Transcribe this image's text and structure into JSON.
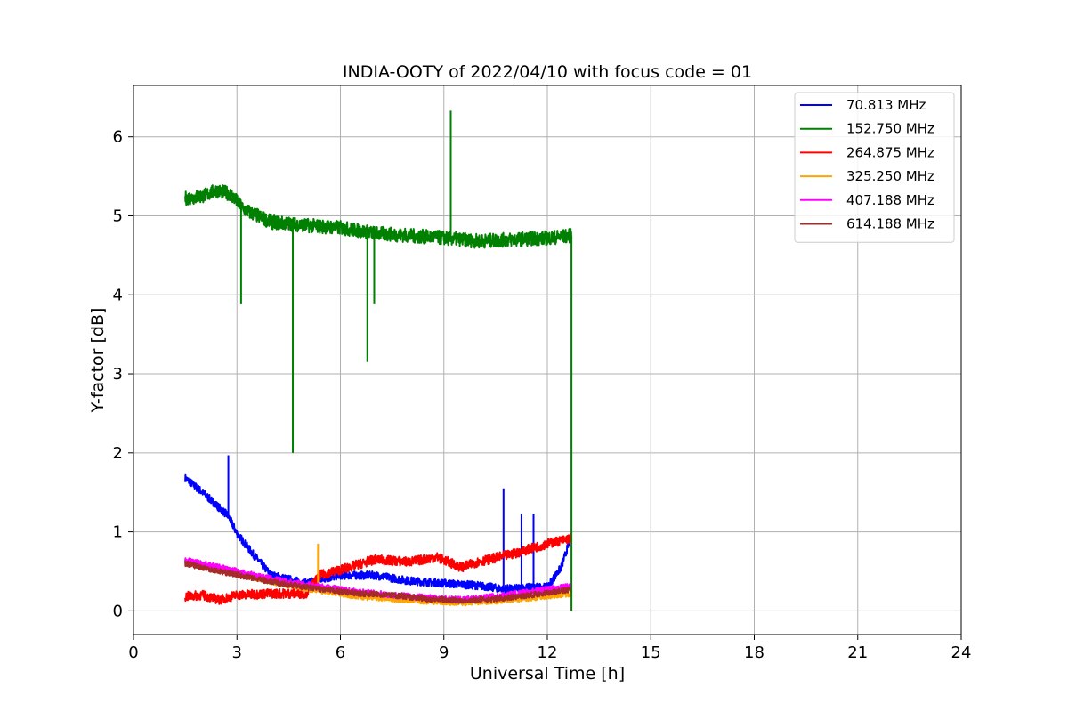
{
  "chart_data": {
    "type": "line",
    "title": "INDIA-OOTY of 2022/04/10 with focus code = 01",
    "xlabel": "Universal Time [h]",
    "ylabel": "Y-factor [dB]",
    "xlim": [
      0,
      24
    ],
    "ylim": [
      -0.3,
      6.65
    ],
    "xticks": [
      0,
      3,
      6,
      9,
      12,
      15,
      18,
      21,
      24
    ],
    "xtick_labels": [
      "0",
      "3",
      "6",
      "9",
      "12",
      "15",
      "18",
      "21",
      "24"
    ],
    "yticks": [
      0,
      1,
      2,
      3,
      4,
      5,
      6
    ],
    "ytick_labels": [
      "0",
      "1",
      "2",
      "3",
      "4",
      "5",
      "6"
    ],
    "grid": true,
    "legend_position": "top-right",
    "series": [
      {
        "name": " 70.813 MHz",
        "color": "#0000ff",
        "x": [
          1.5,
          2.0,
          2.5,
          2.75,
          3.0,
          3.5,
          4.0,
          5.0,
          6.0,
          7.0,
          8.0,
          9.0,
          10.0,
          10.7,
          11.0,
          11.5,
          12.0,
          12.4,
          12.7
        ],
        "y": [
          1.68,
          1.5,
          1.3,
          1.2,
          0.98,
          0.7,
          0.45,
          0.35,
          0.45,
          0.45,
          0.38,
          0.35,
          0.32,
          0.28,
          0.28,
          0.3,
          0.3,
          0.55,
          0.95
        ],
        "spikes": [
          {
            "x": 2.75,
            "y": 1.97
          },
          {
            "x": 10.73,
            "y": 1.55
          },
          {
            "x": 11.25,
            "y": 1.23
          },
          {
            "x": 11.6,
            "y": 1.23
          }
        ]
      },
      {
        "name": "152.750 MHz",
        "color": "#008000",
        "x": [
          1.5,
          2.0,
          2.4,
          2.8,
          3.2,
          4.0,
          5.0,
          6.0,
          7.0,
          8.0,
          9.0,
          10.0,
          11.0,
          12.0,
          12.7
        ],
        "y": [
          5.22,
          5.25,
          5.32,
          5.28,
          5.08,
          4.92,
          4.88,
          4.85,
          4.78,
          4.75,
          4.72,
          4.68,
          4.7,
          4.72,
          4.75
        ],
        "spikes": [
          {
            "x": 3.12,
            "y": 3.88
          },
          {
            "x": 4.62,
            "y": 2.0
          },
          {
            "x": 6.78,
            "y": 3.15
          },
          {
            "x": 6.98,
            "y": 3.88
          },
          {
            "x": 9.2,
            "y": 6.33
          }
        ]
      },
      {
        "name": "264.875 MHz",
        "color": "#ff0000",
        "x": [
          1.5,
          2.0,
          2.5,
          3.0,
          4.0,
          5.0,
          5.4,
          6.0,
          7.0,
          8.0,
          8.8,
          9.5,
          10.0,
          11.0,
          12.0,
          12.7
        ],
        "y": [
          0.18,
          0.2,
          0.14,
          0.2,
          0.22,
          0.22,
          0.45,
          0.52,
          0.65,
          0.62,
          0.68,
          0.55,
          0.62,
          0.72,
          0.85,
          0.92
        ],
        "spikes": []
      },
      {
        "name": "325.250 MHz",
        "color": "#ffa500",
        "x": [
          1.5,
          2.5,
          3.5,
          4.5,
          5.5,
          6.5,
          7.5,
          8.5,
          9.5,
          10.5,
          11.5,
          12.7
        ],
        "y": [
          0.62,
          0.52,
          0.42,
          0.32,
          0.25,
          0.18,
          0.15,
          0.12,
          0.1,
          0.12,
          0.16,
          0.22
        ],
        "spikes": [
          {
            "x": 5.35,
            "y": 0.85
          }
        ]
      },
      {
        "name": "407.188 MHz",
        "color": "#ff00ff",
        "x": [
          1.5,
          2.5,
          3.5,
          4.5,
          5.5,
          6.5,
          7.5,
          8.5,
          9.5,
          10.5,
          11.5,
          12.7
        ],
        "y": [
          0.64,
          0.55,
          0.45,
          0.36,
          0.3,
          0.24,
          0.2,
          0.17,
          0.14,
          0.18,
          0.24,
          0.32
        ],
        "spikes": []
      },
      {
        "name": "614.188 MHz",
        "color": "#a52a2a",
        "x": [
          1.5,
          2.5,
          3.5,
          4.5,
          5.5,
          6.5,
          7.5,
          8.5,
          9.5,
          10.5,
          11.5,
          12.7
        ],
        "y": [
          0.6,
          0.5,
          0.41,
          0.33,
          0.27,
          0.22,
          0.2,
          0.15,
          0.13,
          0.15,
          0.2,
          0.27
        ],
        "spikes": []
      }
    ]
  }
}
